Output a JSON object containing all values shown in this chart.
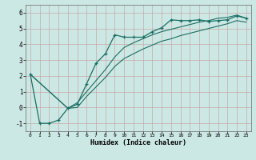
{
  "xlabel": "Humidex (Indice chaleur)",
  "background_color": "#cce8e4",
  "grid_color": "#c8a8a8",
  "line_color": "#1a6e64",
  "xlim": [
    -0.5,
    23.5
  ],
  "ylim": [
    -1.5,
    6.5
  ],
  "yticks": [
    -1,
    0,
    1,
    2,
    3,
    4,
    5,
    6
  ],
  "xticks": [
    0,
    1,
    2,
    3,
    4,
    5,
    6,
    7,
    8,
    9,
    10,
    11,
    12,
    13,
    14,
    15,
    16,
    17,
    18,
    19,
    20,
    21,
    22,
    23
  ],
  "main_x": [
    0,
    1,
    2,
    3,
    4,
    5,
    6,
    7,
    8,
    9,
    10,
    11,
    12,
    13,
    14,
    15,
    16,
    17,
    18,
    19,
    20,
    21,
    22,
    23
  ],
  "main_y": [
    2.1,
    -1.0,
    -1.0,
    -0.8,
    -0.05,
    0.2,
    1.5,
    2.8,
    3.4,
    4.6,
    4.45,
    4.45,
    4.45,
    4.8,
    5.05,
    5.55,
    5.5,
    5.5,
    5.55,
    5.45,
    5.5,
    5.55,
    5.8,
    5.65
  ],
  "upper_x": [
    0,
    4,
    5,
    6,
    7,
    8,
    9,
    10,
    11,
    12,
    13,
    14,
    15,
    16,
    17,
    18,
    19,
    20,
    21,
    22,
    23
  ],
  "upper_y": [
    2.1,
    -0.05,
    0.3,
    1.0,
    1.7,
    2.4,
    3.2,
    3.8,
    4.1,
    4.35,
    4.6,
    4.8,
    4.95,
    5.1,
    5.25,
    5.4,
    5.5,
    5.65,
    5.7,
    5.85,
    5.65
  ],
  "lower_x": [
    0,
    4,
    5,
    6,
    7,
    8,
    9,
    10,
    11,
    12,
    13,
    14,
    15,
    16,
    17,
    18,
    19,
    20,
    21,
    22,
    23
  ],
  "lower_y": [
    2.1,
    -0.05,
    0.0,
    0.7,
    1.3,
    1.9,
    2.6,
    3.1,
    3.4,
    3.7,
    3.95,
    4.2,
    4.35,
    4.55,
    4.7,
    4.85,
    5.0,
    5.15,
    5.3,
    5.5,
    5.4
  ]
}
